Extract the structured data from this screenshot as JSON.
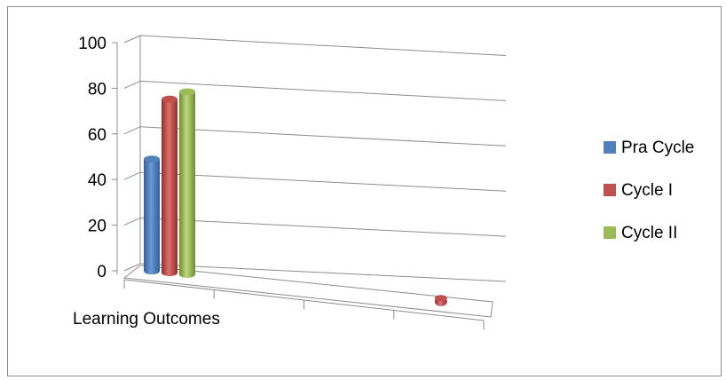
{
  "chart_data": {
    "type": "bar",
    "categories": [
      "Learning Outcomes",
      "",
      "",
      ""
    ],
    "yticks": [
      "0",
      "20",
      "40",
      "60",
      "80",
      "100"
    ],
    "ylim": [
      0,
      100
    ],
    "grid": true,
    "legend_position": "right",
    "series": [
      {
        "name": "Pra Cycle",
        "color": "#4f81bd",
        "values": [
          49,
          null,
          null,
          null
        ]
      },
      {
        "name": "Cycle I",
        "color": "#c0504d",
        "values": [
          76,
          null,
          null,
          1
        ]
      },
      {
        "name": "Cycle II",
        "color": "#9bbb59",
        "values": [
          80,
          null,
          null,
          null
        ]
      }
    ]
  }
}
